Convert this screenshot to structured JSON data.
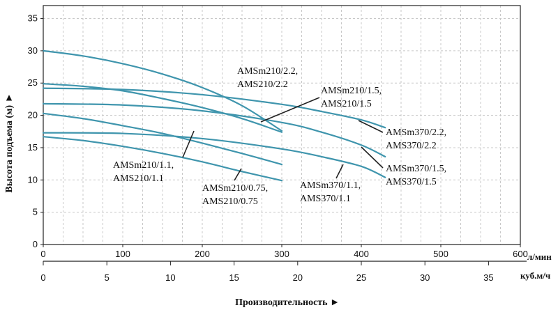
{
  "chart_data": {
    "type": "line",
    "ylabel": "Высота подъема (м) ►",
    "xlabel": "Производительность ►",
    "x_unit_lmin": "л/мин",
    "x_unit_m3h": "куб.м/ч",
    "xlim_lmin": [
      0,
      600
    ],
    "xlim_m3h": [
      0,
      37.5
    ],
    "ylim": [
      0,
      37
    ],
    "x_ticks_lmin": [
      "0",
      "100",
      "200",
      "300",
      "400",
      "500",
      "600"
    ],
    "x_ticks_m3h": [
      "0",
      "5",
      "10",
      "15",
      "20",
      "25",
      "30",
      "35"
    ],
    "y_ticks": [
      "0",
      "5",
      "10",
      "15",
      "20",
      "25",
      "30",
      "35"
    ],
    "grid": true,
    "line_color": "#3f95ad",
    "series": [
      {
        "name": "AMSm210/2.2, AMS210/2.2",
        "label_lines": [
          "AMSm210/2.2,",
          "AMS210/2.2"
        ],
        "x": [
          0,
          50,
          100,
          150,
          200,
          250,
          300
        ],
        "y": [
          30,
          29.2,
          28,
          26.4,
          24.3,
          21.5,
          17.6
        ]
      },
      {
        "name": "AMSm210/1.5, AMS210/1.5",
        "label_lines": [
          "AMSm210/1.5,",
          "AMS210/1.5"
        ],
        "x": [
          0,
          50,
          100,
          150,
          200,
          250,
          300
        ],
        "y": [
          24.9,
          24.5,
          23.8,
          22.6,
          21.2,
          19.5,
          17.4
        ]
      },
      {
        "name": "AMSm210/1.1, AMS210/1.1",
        "label_lines": [
          "AMSm210/1.1,",
          "AMS210/1.1"
        ],
        "x": [
          0,
          50,
          100,
          150,
          200,
          250,
          300
        ],
        "y": [
          20.3,
          19.5,
          18.4,
          17.2,
          15.7,
          14.1,
          12.4
        ]
      },
      {
        "name": "AMSm210/0.75, AMS210/0.75",
        "label_lines": [
          "AMSm210/0.75,",
          "AMS210/0.75"
        ],
        "x": [
          0,
          50,
          100,
          150,
          200,
          250,
          300
        ],
        "y": [
          16.7,
          16.1,
          15.2,
          14.1,
          12.8,
          11.3,
          9.9
        ]
      },
      {
        "name": "AMSm370/2.2, AMS370/2.2",
        "label_lines": [
          "AMSm370/2.2,",
          "AMS370/2.2"
        ],
        "x": [
          0,
          100,
          200,
          300,
          350,
          400,
          430
        ],
        "y": [
          24.2,
          24,
          23.2,
          21.7,
          20.6,
          19.3,
          18.1
        ]
      },
      {
        "name": "AMSm370/1.5, AMS370/1.5",
        "label_lines": [
          "AMSm370/1.5,",
          "AMS370/1.5"
        ],
        "x": [
          0,
          100,
          200,
          300,
          350,
          400,
          430
        ],
        "y": [
          21.8,
          21.6,
          20.7,
          18.9,
          17.4,
          15.4,
          13.6
        ]
      },
      {
        "name": "AMSm370/1.1, AMS370/1.1",
        "label_lines": [
          "AMSm370/1.1,",
          "AMS370/1.1"
        ],
        "x": [
          0,
          100,
          200,
          300,
          350,
          400,
          430
        ],
        "y": [
          17.3,
          17.2,
          16.4,
          14.8,
          13.6,
          12.1,
          10.4
        ]
      }
    ]
  }
}
